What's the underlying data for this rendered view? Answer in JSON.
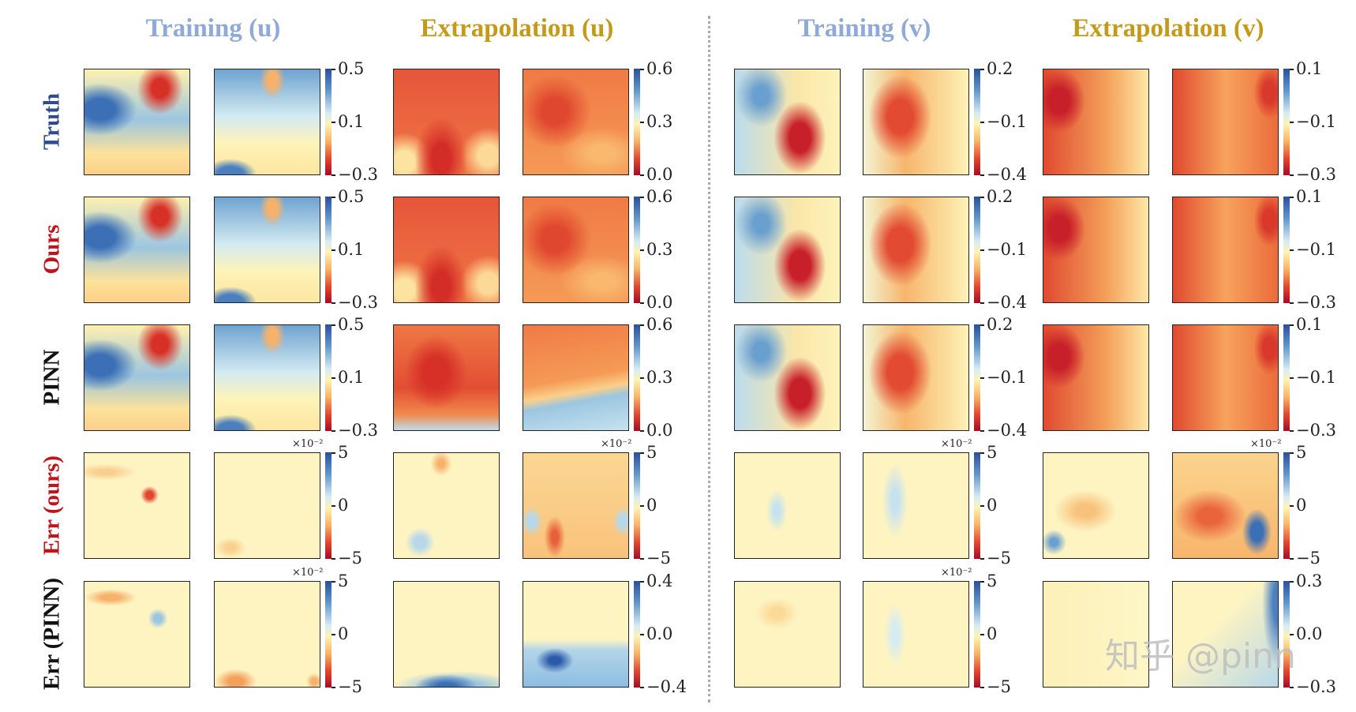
{
  "column_titles": [
    {
      "label": "Training (u)",
      "style": "train"
    },
    {
      "label": "Extrapolation (u)",
      "style": "extra"
    },
    {
      "label": "Training (v)",
      "style": "train"
    },
    {
      "label": "Extrapolation (v)",
      "style": "extra"
    }
  ],
  "row_labels": [
    {
      "label": "Truth",
      "color": "#2e4d8f"
    },
    {
      "label": "Ours",
      "color": "#c0131b"
    },
    {
      "label": "PINN",
      "color": "#111111"
    },
    {
      "label": "Err (ours)",
      "color": "#c0131b"
    },
    {
      "label": "Err (PINN)",
      "color": "#111111"
    }
  ],
  "watermark": "知乎 @pinn",
  "chart_data": {
    "type": "heatmap",
    "colormap": "RdYlBu",
    "groups": [
      "Training (u)",
      "Extrapolation (u)",
      "Training (v)",
      "Extrapolation (v)"
    ],
    "rows": [
      "Truth",
      "Ours",
      "PINN",
      "Err (ours)",
      "Err (PINN)"
    ],
    "colorbars": [
      [
        {
          "ticks": [
            "0.5",
            "0.1",
            "−0.3"
          ],
          "range": [
            -0.3,
            0.5
          ],
          "multiplier": ""
        },
        {
          "ticks": [
            "0.6",
            "0.3",
            "0.0"
          ],
          "range": [
            0.0,
            0.6
          ],
          "multiplier": ""
        },
        {
          "ticks": [
            "0.2",
            "−0.1",
            "−0.4"
          ],
          "range": [
            -0.4,
            0.2
          ],
          "multiplier": ""
        },
        {
          "ticks": [
            "0.1",
            "−0.1",
            "−0.3"
          ],
          "range": [
            -0.3,
            0.1
          ],
          "multiplier": ""
        }
      ],
      [
        {
          "ticks": [
            "0.5",
            "0.1",
            "−0.3"
          ],
          "range": [
            -0.3,
            0.5
          ],
          "multiplier": ""
        },
        {
          "ticks": [
            "0.6",
            "0.3",
            "0.0"
          ],
          "range": [
            0.0,
            0.6
          ],
          "multiplier": ""
        },
        {
          "ticks": [
            "0.2",
            "−0.1",
            "−0.4"
          ],
          "range": [
            -0.4,
            0.2
          ],
          "multiplier": ""
        },
        {
          "ticks": [
            "0.1",
            "−0.1",
            "−0.3"
          ],
          "range": [
            -0.3,
            0.1
          ],
          "multiplier": ""
        }
      ],
      [
        {
          "ticks": [
            "0.5",
            "0.1",
            "−0.3"
          ],
          "range": [
            -0.3,
            0.5
          ],
          "multiplier": ""
        },
        {
          "ticks": [
            "0.6",
            "0.3",
            "0.0"
          ],
          "range": [
            0.0,
            0.6
          ],
          "multiplier": ""
        },
        {
          "ticks": [
            "0.2",
            "−0.1",
            "−0.4"
          ],
          "range": [
            -0.4,
            0.2
          ],
          "multiplier": ""
        },
        {
          "ticks": [
            "0.1",
            "−0.1",
            "−0.3"
          ],
          "range": [
            -0.3,
            0.1
          ],
          "multiplier": ""
        }
      ],
      [
        {
          "ticks": [
            "5",
            "0",
            "−5"
          ],
          "range": [
            -5,
            5
          ],
          "multiplier": "×10⁻²"
        },
        {
          "ticks": [
            "5",
            "0",
            "−5"
          ],
          "range": [
            -5,
            5
          ],
          "multiplier": "×10⁻²"
        },
        {
          "ticks": [
            "5",
            "0",
            "−5"
          ],
          "range": [
            -5,
            5
          ],
          "multiplier": "×10⁻²"
        },
        {
          "ticks": [
            "5",
            "0",
            "−5"
          ],
          "range": [
            -5,
            5
          ],
          "multiplier": "×10⁻²"
        }
      ],
      [
        {
          "ticks": [
            "5",
            "0",
            "−5"
          ],
          "range": [
            -5,
            5
          ],
          "multiplier": "×10⁻²"
        },
        {
          "ticks": [
            "0.4",
            "0.0",
            "−0.4"
          ],
          "range": [
            -0.4,
            0.4
          ],
          "multiplier": ""
        },
        {
          "ticks": [
            "5",
            "0",
            "−5"
          ],
          "range": [
            -5,
            5
          ],
          "multiplier": "×10⁻²"
        },
        {
          "ticks": [
            "0.3",
            "0.0",
            "−0.3"
          ],
          "range": [
            -0.3,
            0.3
          ],
          "multiplier": ""
        }
      ]
    ]
  }
}
